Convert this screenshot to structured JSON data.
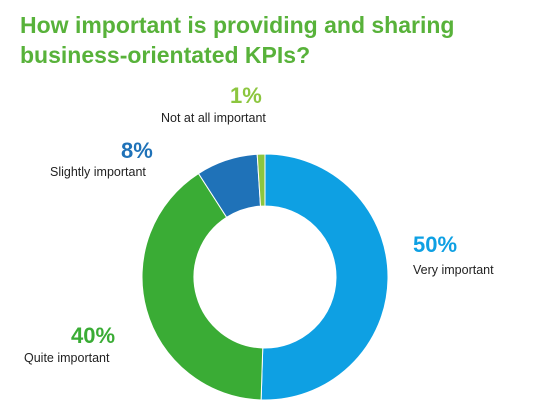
{
  "title": "How important is providing and sharing business-orientated KPIs?",
  "chart_data": {
    "type": "pie",
    "title": "How important is providing and sharing business-orientated KPIs?",
    "donut": true,
    "slices": [
      {
        "label": "Very important",
        "value": 50,
        "display": "50%",
        "color": "#0ea0e3"
      },
      {
        "label": "Quite important",
        "value": 40,
        "display": "40%",
        "color": "#3aac35"
      },
      {
        "label": "Slightly important",
        "value": 8,
        "display": "8%",
        "color": "#1f72b8"
      },
      {
        "label": "Not at all important",
        "value": 1,
        "display": "1%",
        "color": "#8cc63f"
      }
    ]
  }
}
